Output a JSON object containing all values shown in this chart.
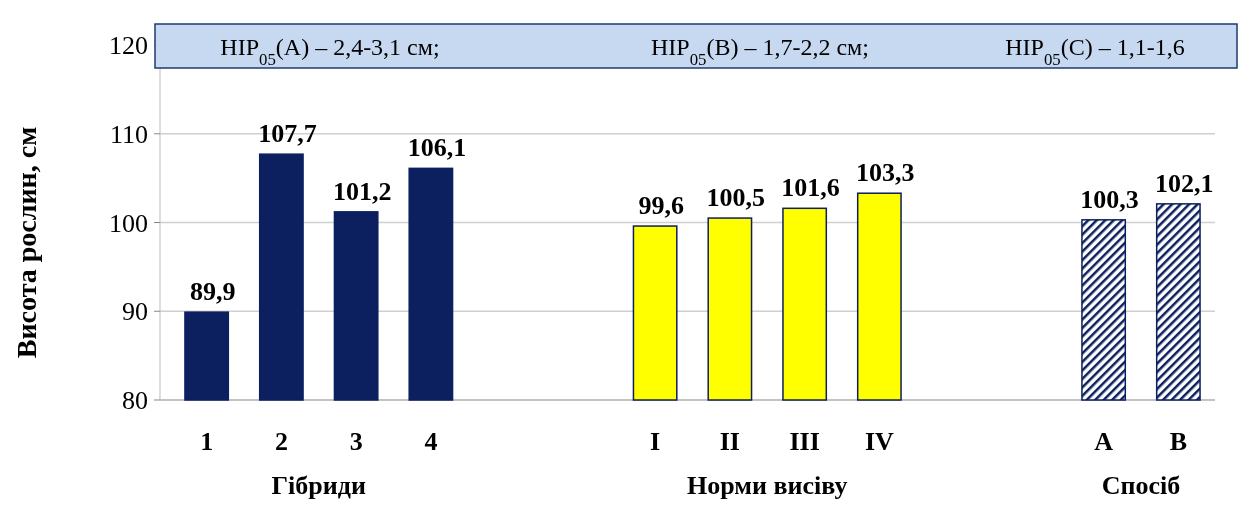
{
  "chart_data": {
    "type": "bar",
    "ylabel": "Висота рослин, см",
    "categories": [
      "1",
      "2",
      "3",
      "4",
      null,
      null,
      "I",
      "II",
      "III",
      "IV",
      null,
      null,
      "A",
      "B"
    ],
    "values": [
      89.9,
      107.7,
      101.2,
      106.1,
      null,
      null,
      99.6,
      100.5,
      101.6,
      103.3,
      null,
      null,
      100.3,
      102.1
    ],
    "value_labels": [
      "89,9",
      "107,7",
      "101,2",
      "106,1",
      null,
      null,
      "99,6",
      "100,5",
      "101,6",
      "103,3",
      null,
      null,
      "100,3",
      "102,1"
    ],
    "colors": [
      "#0c1f5e",
      "#0c1f5e",
      "#0c1f5e",
      "#0c1f5e",
      null,
      null,
      "#ffff00",
      "#ffff00",
      "#ffff00",
      "#ffff00",
      null,
      null,
      "#0c1f5e",
      "#0c1f5e"
    ],
    "ylim": [
      80,
      120
    ],
    "yticks": [
      80,
      90,
      100,
      110,
      120
    ],
    "grid": "y",
    "annotations": [
      "НІР$_{05}$(A) – 2,4-3,1 см;",
      "НІР$_{05}$(B) – 1,7-2,2 см;",
      "НІР$_{05}$(C) – 1,1-1,6",
      "Гібриди",
      "Норми висіву",
      "Спосіб"
    ]
  }
}
